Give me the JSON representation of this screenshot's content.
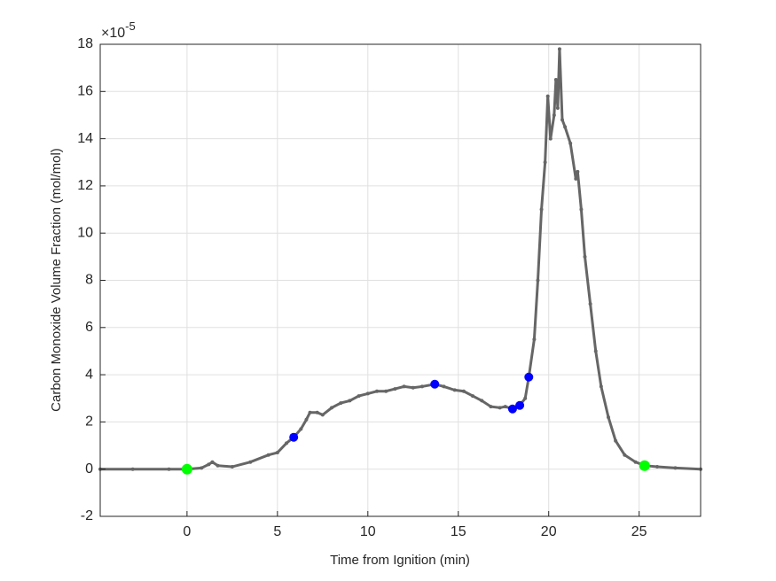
{
  "chart_data": {
    "type": "line",
    "xlabel": "Time from Ignition (min)",
    "ylabel": "Carbon Monoxide Volume Fraction (mol/mol)",
    "y_multiplier_base": "×10",
    "y_multiplier_exponent": -5,
    "xlim": [
      -4.8,
      28.4
    ],
    "xticks": [
      0,
      5,
      10,
      15,
      20,
      25
    ],
    "ylim": [
      -2,
      18
    ],
    "yticks": [
      -2,
      0,
      2,
      4,
      6,
      8,
      10,
      12,
      14,
      16,
      18
    ],
    "grid": true,
    "series": [
      {
        "style": "line",
        "color": "#666666",
        "x": [
          -4.8,
          -3,
          -1,
          0,
          0.8,
          1.2,
          1.4,
          1.7,
          2.5,
          3.5,
          4.5,
          5,
          5.5,
          5.9,
          6.3,
          6.6,
          6.8,
          7.2,
          7.5,
          8,
          8.5,
          9,
          9.5,
          10,
          10.5,
          11,
          11.5,
          12,
          12.5,
          13,
          13.7,
          14.2,
          14.8,
          15.3,
          15.8,
          16.3,
          16.8,
          17.3,
          17.6,
          18,
          18.4,
          18.7,
          18.9,
          19.2,
          19.4,
          19.6,
          19.8,
          19.95,
          20.1,
          20.3,
          20.4,
          20.5,
          20.6,
          20.75,
          20.9,
          21.2,
          21.5,
          21.6,
          21.8,
          22,
          22.3,
          22.6,
          22.9,
          23.3,
          23.7,
          24.2,
          24.8,
          25.3,
          26,
          27,
          28.4
        ],
        "values": [
          0,
          0,
          0,
          0,
          0.05,
          0.2,
          0.3,
          0.15,
          0.1,
          0.3,
          0.6,
          0.7,
          1.1,
          1.35,
          1.7,
          2.1,
          2.4,
          2.4,
          2.3,
          2.6,
          2.8,
          2.9,
          3.1,
          3.2,
          3.3,
          3.3,
          3.4,
          3.5,
          3.45,
          3.5,
          3.6,
          3.5,
          3.35,
          3.3,
          3.1,
          2.9,
          2.65,
          2.6,
          2.65,
          2.55,
          2.7,
          3.0,
          3.9,
          5.5,
          8,
          11,
          13,
          15.8,
          14,
          15,
          16.5,
          15.3,
          17.8,
          14.8,
          14.5,
          13.8,
          12.3,
          12.6,
          11,
          9,
          7,
          5,
          3.5,
          2.2,
          1.2,
          0.6,
          0.3,
          0.15,
          0.1,
          0.05,
          0
        ]
      },
      {
        "style": "markers",
        "color": "#0000ff",
        "x": [
          5.9,
          13.7,
          18.0,
          18.4,
          18.9
        ],
        "values": [
          1.35,
          3.6,
          2.55,
          2.7,
          3.9
        ]
      },
      {
        "style": "markers",
        "color": "#00ff00",
        "x": [
          0,
          25.3
        ],
        "values": [
          0,
          0.15
        ]
      }
    ]
  }
}
